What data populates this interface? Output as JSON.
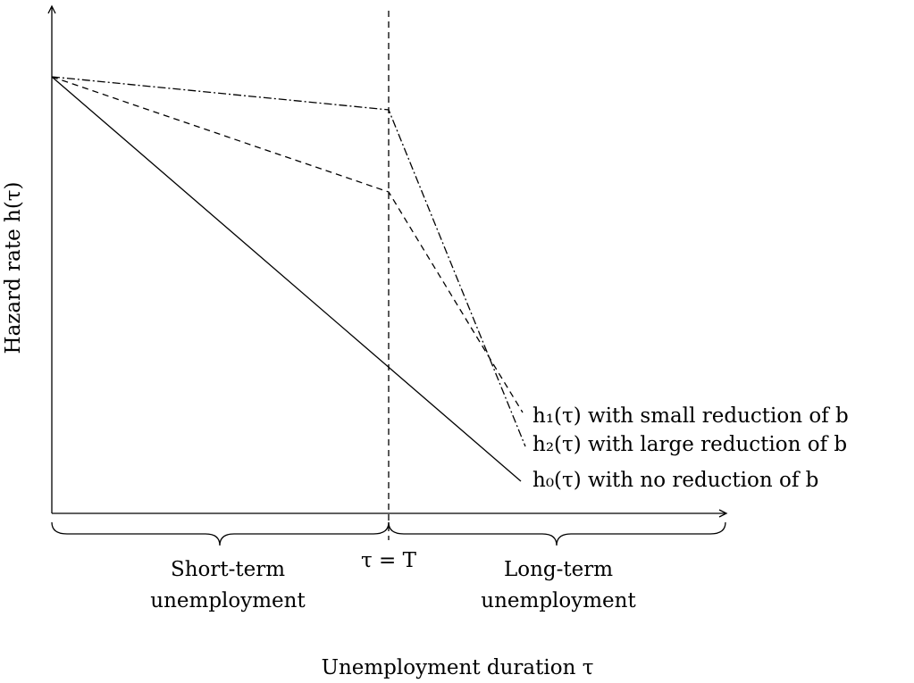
{
  "y_axis_label": "Hazard rate h(τ)",
  "x_axis_label": "Unemployment duration τ",
  "threshold_label": "τ = T",
  "regions": [
    {
      "line1": "Short-term",
      "line2": "unemployment"
    },
    {
      "line1": "Long-term",
      "line2": "unemployment"
    }
  ],
  "curves": [
    {
      "label": "h₁(τ) with small reduction of b"
    },
    {
      "label": "h₂(τ) with large reduction of b"
    },
    {
      "label": "h₀(τ) with no reduction of b"
    }
  ]
}
